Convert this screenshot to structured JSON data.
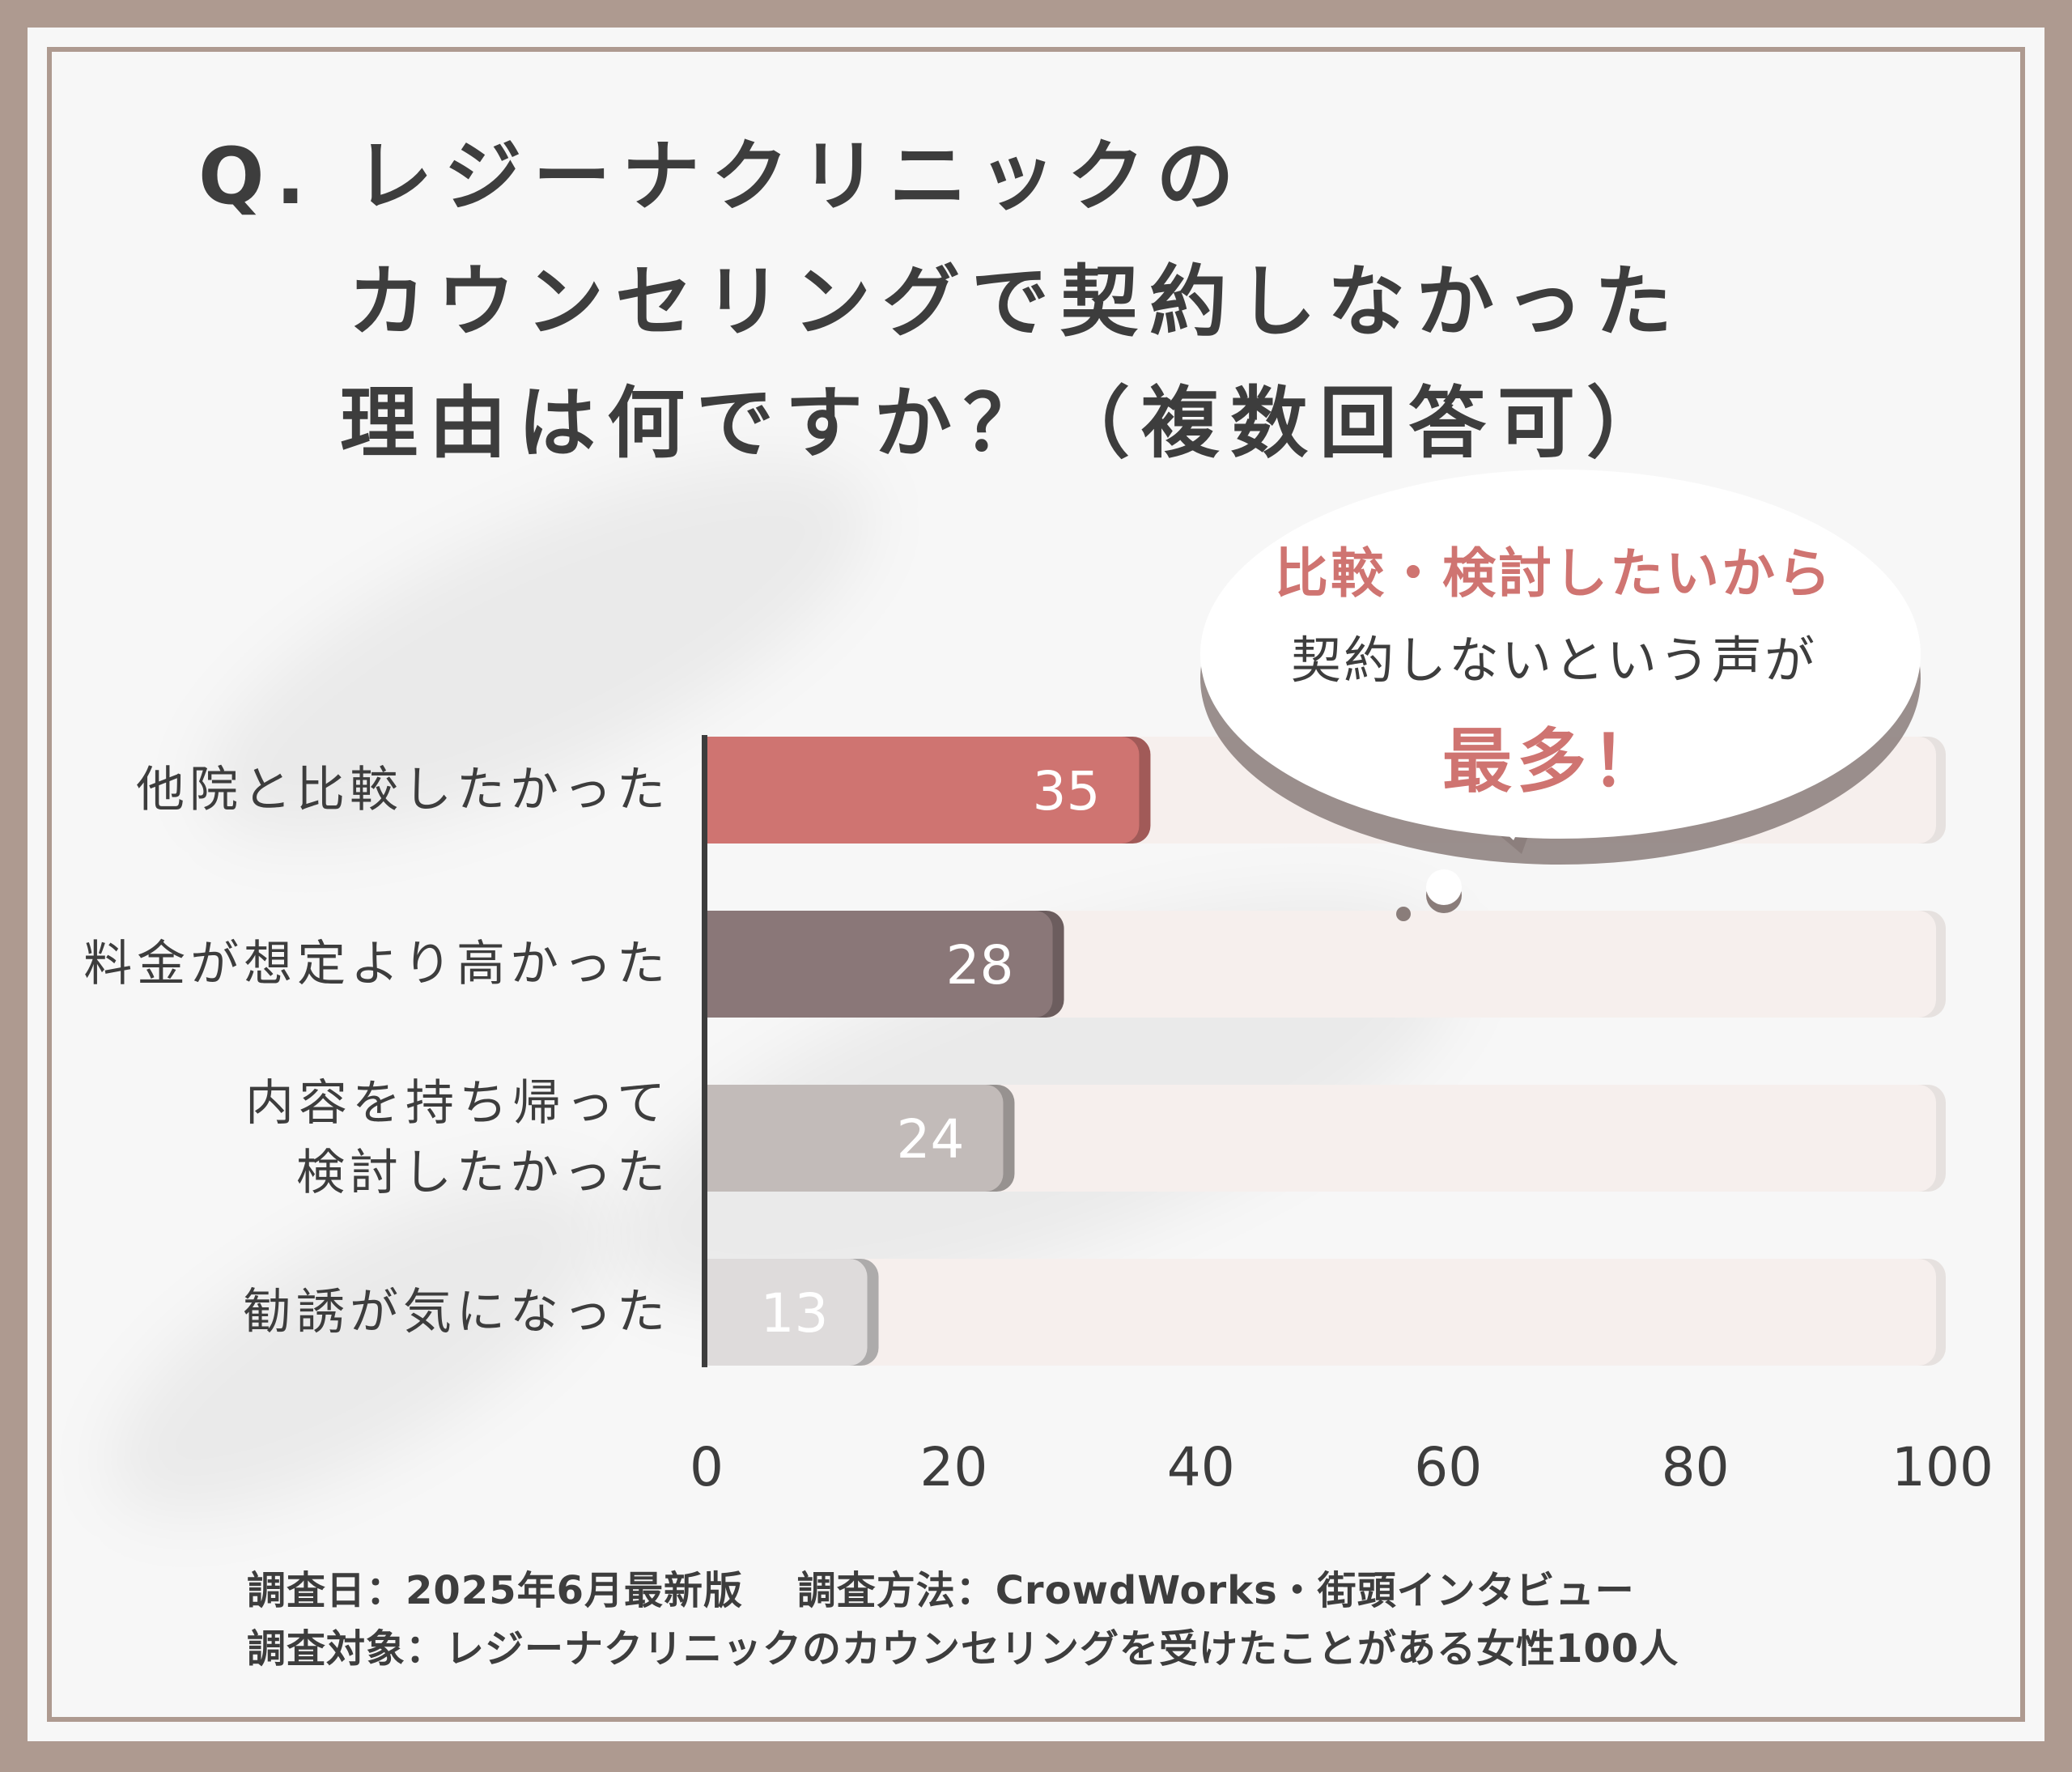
{
  "title": {
    "line1": "Q. レジーナクリニックの",
    "line2": "カウンセリングで契約しなかった",
    "line3": "理由は何ですか？（複数回答可）"
  },
  "callout": {
    "line1": "比較・検討したいから",
    "line2": "契約しないという声が",
    "line3": "最多！"
  },
  "chart_data": {
    "type": "bar",
    "orientation": "horizontal",
    "categories": [
      "他院と比較したかった",
      "料金が想定より高かった",
      "内容を持ち帰って検討したかった",
      "勧誘が気になった"
    ],
    "category_lines": [
      [
        "他院と比較したかった"
      ],
      [
        "料金が想定より高かった"
      ],
      [
        "内容を持ち帰って",
        "検討したかった"
      ],
      [
        "勧誘が気になった"
      ]
    ],
    "values": [
      35,
      28,
      24,
      13
    ],
    "value_labels": [
      "35",
      "28",
      "24",
      "13"
    ],
    "bar_colors": [
      "#cf7471",
      "#8a7778",
      "#c2bbb9",
      "#dedbdb"
    ],
    "track_color": "#f6efed",
    "xlim": [
      0,
      100
    ],
    "xticks": [
      0,
      20,
      40,
      60,
      80,
      100
    ],
    "xtick_labels": [
      "0",
      "20",
      "40",
      "60",
      "80",
      "100"
    ],
    "title": "",
    "xlabel": "",
    "ylabel": "",
    "grid": false
  },
  "footnote": {
    "line1": "調査日：2025年6月最新版　 調査方法：CrowdWorks・街頭インタビュー",
    "line2": "調査対象：レジーナクリニックのカウンセリングを受けたことがある女性100人"
  }
}
